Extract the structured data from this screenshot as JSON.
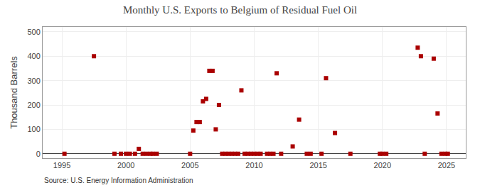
{
  "chart_data": {
    "type": "scatter",
    "title": "Monthly U.S. Exports to Belgium of Residual Fuel Oil",
    "y_label": "Thousand Barrels",
    "annotations": [
      "Source: U.S. Energy Information Administration"
    ],
    "x": [
      1995.2,
      1997.5,
      1999.1,
      1999.6,
      2000.0,
      2000.3,
      2000.7,
      2001.0,
      2001.3,
      2001.6,
      2001.9,
      2002.1,
      2002.4,
      2005.0,
      2005.25,
      2005.5,
      2005.75,
      2006.0,
      2006.25,
      2006.5,
      2006.75,
      2007.0,
      2007.25,
      2007.5,
      2007.75,
      2008.0,
      2008.25,
      2008.5,
      2008.75,
      2009.0,
      2009.25,
      2009.5,
      2009.75,
      2010.0,
      2010.25,
      2010.5,
      2011.0,
      2011.25,
      2011.5,
      2011.75,
      2012.1,
      2013.0,
      2013.5,
      2014.1,
      2014.4,
      2015.25,
      2015.6,
      2016.3,
      2017.5,
      2019.8,
      2020.0,
      2020.3,
      2022.75,
      2023.0,
      2023.3,
      2024.0,
      2024.3,
      2024.6,
      2024.9,
      2025.1
    ],
    "values": [
      0,
      400,
      0,
      0,
      0,
      0,
      0,
      20,
      0,
      0,
      0,
      0,
      0,
      0,
      95,
      130,
      130,
      215,
      225,
      340,
      340,
      100,
      200,
      0,
      0,
      0,
      0,
      0,
      0,
      260,
      0,
      0,
      0,
      0,
      0,
      0,
      0,
      0,
      0,
      330,
      0,
      30,
      140,
      0,
      0,
      0,
      310,
      85,
      0,
      0,
      0,
      0,
      435,
      400,
      0,
      390,
      165,
      0,
      0,
      0
    ],
    "color": "#aa0000",
    "marker": "square",
    "xlim": [
      1993.5,
      2026.5
    ],
    "xticks": [
      1995,
      2000,
      2005,
      2010,
      2015,
      2020,
      2025
    ],
    "ylim": [
      -18,
      520
    ],
    "yticks": [
      0,
      100,
      200,
      300,
      400,
      500
    ],
    "grid": true
  }
}
